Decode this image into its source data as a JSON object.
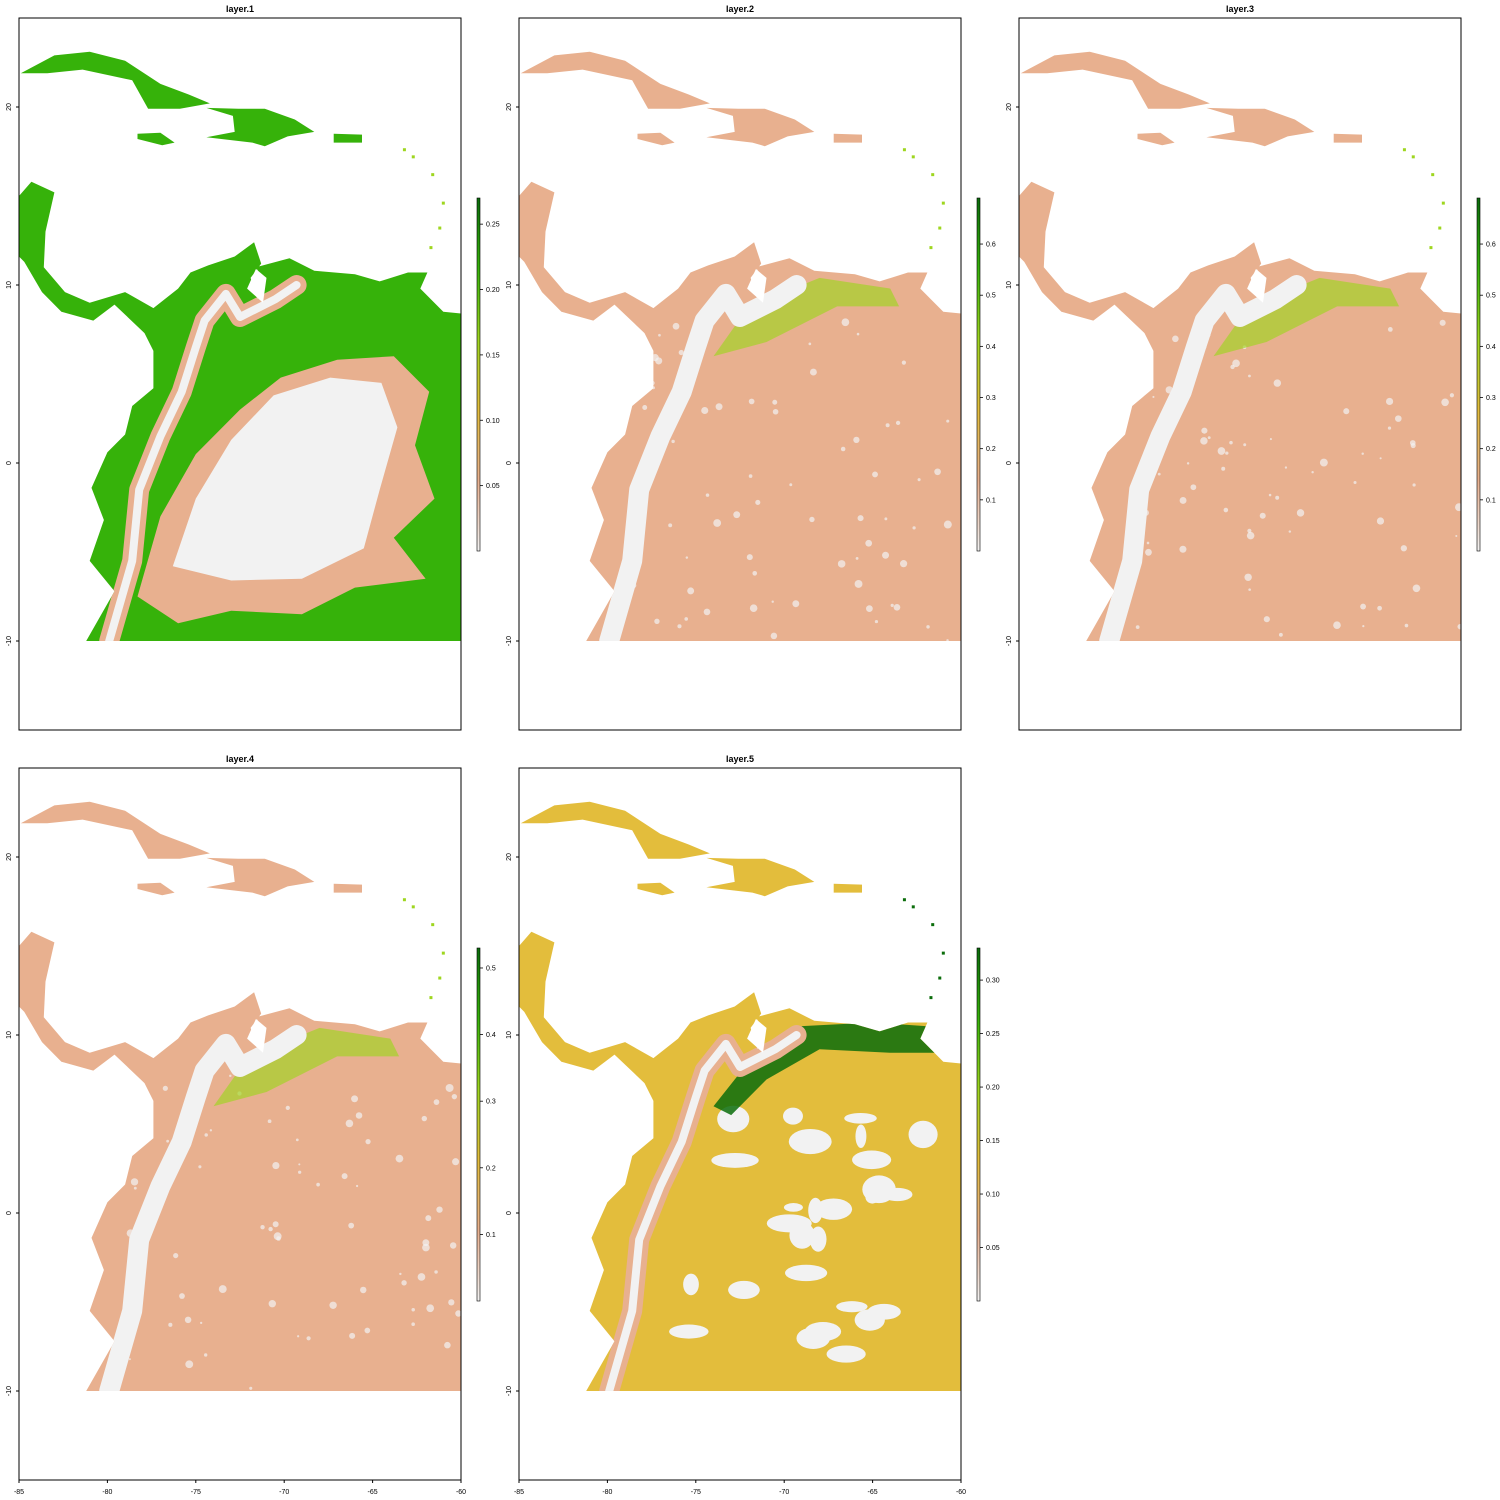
{
  "figure": {
    "type": "raster-map-grid",
    "palette": [
      "#f2f2f2",
      "#e8b08f",
      "#e3bd3c",
      "#9ed61f",
      "#36b20a",
      "#0b6d0b"
    ]
  },
  "panels": [
    {
      "title": "layer.1",
      "legend": {
        "min": 0.0,
        "max": 0.27,
        "ticks": [
          "0.25",
          "0.20",
          "0.15",
          "0.10",
          "0.05"
        ],
        "tick_values": [
          0.25,
          0.2,
          0.15,
          0.1,
          0.05
        ]
      }
    },
    {
      "title": "layer.2",
      "legend": {
        "min": 0.0,
        "max": 0.69,
        "ticks": [
          "0.6",
          "0.5",
          "0.4",
          "0.3",
          "0.2",
          "0.1"
        ],
        "tick_values": [
          0.6,
          0.5,
          0.4,
          0.3,
          0.2,
          0.1
        ]
      }
    },
    {
      "title": "layer.3",
      "legend": {
        "min": 0.0,
        "max": 0.69,
        "ticks": [
          "0.6",
          "0.5",
          "0.4",
          "0.3",
          "0.2",
          "0.1"
        ],
        "tick_values": [
          0.6,
          0.5,
          0.4,
          0.3,
          0.2,
          0.1
        ]
      }
    },
    {
      "title": "layer.4",
      "legend": {
        "min": 0.0,
        "max": 0.53,
        "ticks": [
          "0.5",
          "0.4",
          "0.3",
          "0.2",
          "0.1"
        ],
        "tick_values": [
          0.5,
          0.4,
          0.3,
          0.2,
          0.1
        ]
      }
    },
    {
      "title": "layer.5",
      "legend": {
        "min": 0.0,
        "max": 0.33,
        "ticks": [
          "0.30",
          "0.25",
          "0.20",
          "0.15",
          "0.10",
          "0.05"
        ],
        "tick_values": [
          0.3,
          0.25,
          0.2,
          0.15,
          0.1,
          0.05
        ]
      }
    }
  ],
  "axes": {
    "x_range": [
      -85,
      -60
    ],
    "y_range": [
      -15,
      25
    ],
    "x_tick_values": [
      -85,
      -80,
      -75,
      -70,
      -65,
      -60
    ],
    "x_ticks": [
      "-85",
      "-80",
      "-75",
      "-70",
      "-65",
      "-60"
    ],
    "y_tick_values": [
      20,
      10,
      0,
      -10
    ],
    "y_ticks": [
      "20",
      "10",
      "0",
      "-10"
    ]
  },
  "map_extent": {
    "lon": [
      -85,
      -60
    ],
    "lat": [
      -10,
      25
    ]
  }
}
